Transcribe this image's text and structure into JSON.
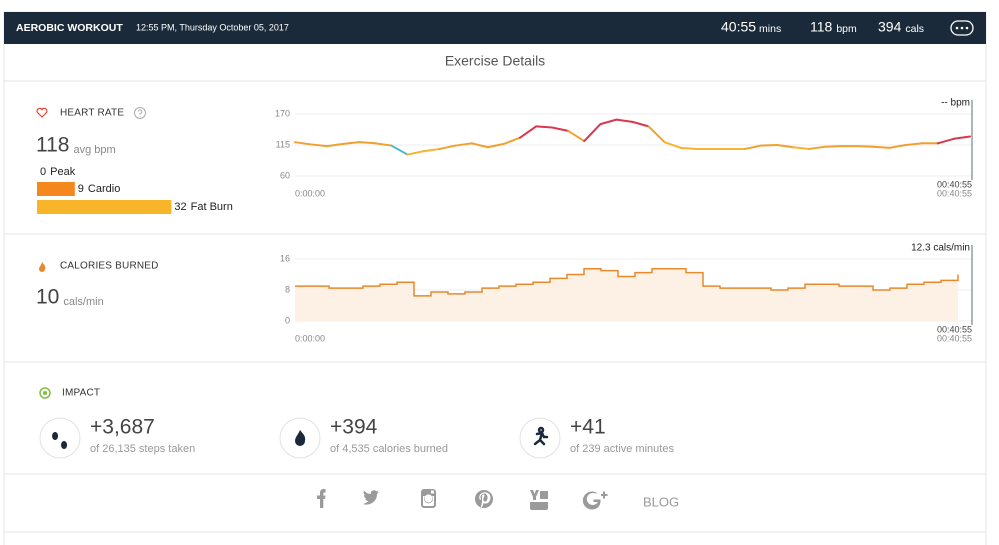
{
  "header": {
    "title": "AEROBIC WORKOUT",
    "datetime": "12:55 PM, Thursday October 05, 2017",
    "duration": "40:55",
    "duration_unit": "mins",
    "heart_rate": 118,
    "heart_rate_unit": "bpm",
    "calories": 394,
    "calories_unit": "cals"
  },
  "page_title": "Exercise Details",
  "heart_rate": {
    "title": "HEART RATE",
    "average": 118,
    "average_unit": "avg bpm",
    "zones": [
      {
        "minutes": 0,
        "name": "Peak",
        "color": "#e2462f"
      },
      {
        "minutes": 9,
        "name": "Cardio",
        "color": "#f5871f"
      },
      {
        "minutes": 32,
        "name": "Fat Burn",
        "color": "#f9b52a"
      }
    ],
    "chart": {
      "type": "line",
      "values": [
        120,
        116,
        113,
        117,
        120,
        118,
        114,
        98,
        104,
        108,
        114,
        118,
        111,
        117,
        128,
        148,
        146,
        140,
        122,
        152,
        160,
        156,
        148,
        120,
        110,
        108,
        108,
        108,
        108,
        114,
        115,
        111,
        108,
        112,
        113,
        113,
        112,
        110,
        115,
        118,
        118,
        126,
        130
      ],
      "colors": [
        "#f0a030",
        "#f0a030",
        "#f0a030",
        "#f0a030",
        "#f0a030",
        "#f0a030",
        "#f0a030",
        "#4cb8d4",
        "#f5b52e",
        "#f5b52e",
        "#f0a030",
        "#f0a030",
        "#f0a030",
        "#f0a030",
        "#f0a030",
        "#d8374f",
        "#d8374f",
        "#d8374f",
        "#f0a030",
        "#d8374f",
        "#d8374f",
        "#d8374f",
        "#d8374f",
        "#f0a030",
        "#f5b52e",
        "#f5b52e",
        "#f5b52e",
        "#f5b52e",
        "#f5b52e",
        "#f0a030",
        "#f0a030",
        "#f0a030",
        "#f5b52e",
        "#f0a030",
        "#f0a030",
        "#f0a030",
        "#f0a030",
        "#f0a030",
        "#f0a030",
        "#f0a030",
        "#f0a030",
        "#d8374f",
        "#d8374f"
      ],
      "ylim": [
        60,
        170
      ],
      "yticks": [
        60,
        115,
        170
      ],
      "grid": true,
      "start_label": "0:00:00",
      "end_label": "00:40:55",
      "cursor_time": "00:40:55",
      "cursor_value": "-- bpm"
    }
  },
  "calories": {
    "title": "CALORIES BURNED",
    "average": 10,
    "average_unit": "cals/min",
    "chart": {
      "type": "step-area",
      "values": [
        9,
        9,
        8.5,
        8.5,
        9,
        9.5,
        10,
        6.5,
        7.5,
        7,
        7.5,
        8.5,
        9,
        9.5,
        10,
        11,
        12,
        13.5,
        13,
        11.5,
        12.5,
        13.5,
        13.5,
        12.5,
        9,
        8.5,
        8.5,
        8.5,
        8,
        8.5,
        9.5,
        9.5,
        9,
        9,
        8,
        8.5,
        9.5,
        10,
        10.5,
        12
      ],
      "color": "#e8892e",
      "fill": "#fdf1e6",
      "ylim": [
        0,
        16
      ],
      "yticks": [
        0,
        8,
        16
      ],
      "grid": true,
      "start_label": "0:00:00",
      "end_label": "00:40:55",
      "cursor_time": "00:40:55",
      "cursor_value": "12.3 cals/min"
    }
  },
  "impact": {
    "title": "IMPACT",
    "items": [
      {
        "value": "+3,687",
        "detail": "of 26,135 steps taken"
      },
      {
        "value": "+394",
        "detail": "of 4,535 calories burned"
      },
      {
        "value": "+41",
        "detail": "of 239 active minutes"
      }
    ]
  },
  "footer": {
    "blog": "BLOG"
  }
}
